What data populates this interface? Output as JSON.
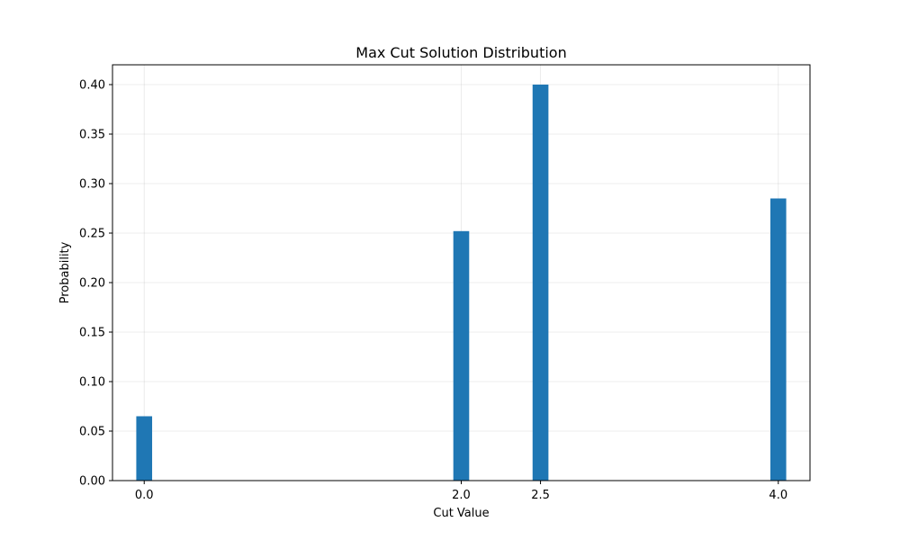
{
  "chart_data": {
    "type": "bar",
    "title": "Max Cut Solution Distribution",
    "xlabel": "Cut Value",
    "ylabel": "Probability",
    "x": [
      0.0,
      2.0,
      2.5,
      4.0
    ],
    "values": [
      0.065,
      0.252,
      0.4,
      0.285
    ],
    "bar_width": 0.1,
    "xlim": [
      -0.2,
      4.2
    ],
    "ylim": [
      0,
      0.42
    ],
    "xticks": [
      0.0,
      2.0,
      2.5,
      4.0
    ],
    "xtick_labels": [
      "0.0",
      "2.0",
      "2.5",
      "4.0"
    ],
    "yticks": [
      0,
      0.05,
      0.1,
      0.15,
      0.2,
      0.25,
      0.3,
      0.35,
      0.4
    ],
    "ytick_labels": [
      "0.00",
      "0.05",
      "0.10",
      "0.15",
      "0.20",
      "0.25",
      "0.30",
      "0.35",
      "0.40"
    ],
    "grid": true,
    "bar_color": "#1f77b4"
  }
}
